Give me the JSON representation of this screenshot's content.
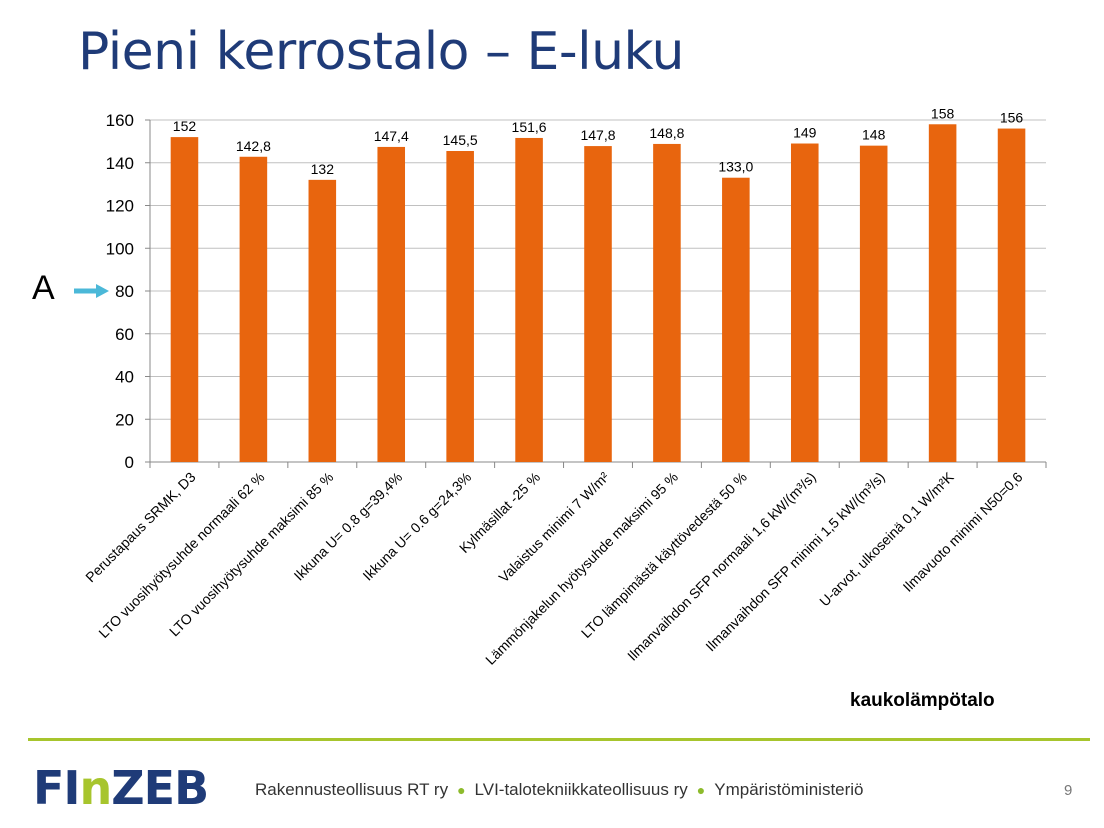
{
  "slide": {
    "title": "Pieni kerrostalo – E-luku",
    "note": "kaukolämpötalo",
    "marker": {
      "label": "A",
      "value": 80,
      "color": "#4bb8d8"
    },
    "page_number": "9"
  },
  "footer": {
    "logo": {
      "fi": "FI",
      "n": "n",
      "zeb": "ZEB"
    },
    "orgs": [
      "Rakennusteollisuus RT ry",
      "LVI-talotekniikkateollisuus ry",
      "Ympäristöministeriö"
    ]
  },
  "colors": {
    "title": "#1f3b78",
    "bar": "#e8650e",
    "accent": "#a7c52d",
    "grid": "#c0c0c0"
  },
  "chart_data": {
    "type": "bar",
    "categories": [
      "Perustapaus SRMK, D3",
      "LTO vuosihyötysuhde normaali 62 %",
      "LTO vuosihyötysuhde maksimi 85 %",
      "Ikkuna U= 0.8 g=39,4%",
      "Ikkuna U= 0.6 g=24,3%",
      "Kylmäsillat -25 %",
      "Valaistus minimi 7 W/m²",
      "Lämmönjakelun hyötysuhde maksimi 95 %",
      "LTO lämpimästä käyttövedestä 50 %",
      "Ilmanvaihdon SFP normaali 1,6 kW/(m³/s)",
      "Ilmanvaihdon SFP minimi 1,5 kW/(m³/s)",
      "U-arvot, ulkoseinä 0,1 W/m²K",
      "Ilmavuoto minimi N50=0,6"
    ],
    "values": [
      152,
      142.8,
      132,
      147.4,
      145.5,
      151.6,
      147.8,
      148.8,
      133.0,
      149,
      148,
      158,
      156
    ],
    "data_labels": [
      "152",
      "142,8",
      "132",
      "147,4",
      "145,5",
      "151,6",
      "147,8",
      "148,8",
      "133,0",
      "149",
      "148",
      "158",
      "156"
    ],
    "yticks": [
      "0",
      "20",
      "40",
      "60",
      "80",
      "100",
      "120",
      "140",
      "160"
    ],
    "ylim": [
      0,
      160
    ],
    "grid": true,
    "legend": "none"
  }
}
